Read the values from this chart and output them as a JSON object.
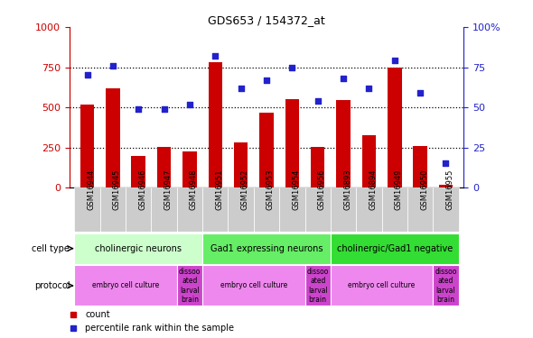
{
  "title": "GDS653 / 154372_at",
  "samples": [
    "GSM16944",
    "GSM16945",
    "GSM16946",
    "GSM16947",
    "GSM16948",
    "GSM16951",
    "GSM16952",
    "GSM16953",
    "GSM16954",
    "GSM16956",
    "GSM16893",
    "GSM16894",
    "GSM16949",
    "GSM16950",
    "GSM16955"
  ],
  "counts": [
    515,
    620,
    195,
    255,
    225,
    780,
    280,
    465,
    550,
    255,
    545,
    325,
    750,
    260,
    20
  ],
  "percentiles": [
    70,
    76,
    49,
    49,
    52,
    82,
    62,
    67,
    75,
    54,
    68,
    62,
    79,
    59,
    15
  ],
  "bar_color": "#cc0000",
  "dot_color": "#2222cc",
  "ylim_left": [
    0,
    1000
  ],
  "ylim_right": [
    0,
    100
  ],
  "yticks_left": [
    0,
    250,
    500,
    750,
    1000
  ],
  "yticks_right": [
    0,
    25,
    50,
    75,
    100
  ],
  "cell_type_groups": [
    {
      "label": "cholinergic neurons",
      "start": 0,
      "end": 5,
      "color": "#ccffcc"
    },
    {
      "label": "Gad1 expressing neurons",
      "start": 5,
      "end": 10,
      "color": "#66ee66"
    },
    {
      "label": "cholinergic/Gad1 negative",
      "start": 10,
      "end": 15,
      "color": "#33dd33"
    }
  ],
  "protocol_groups": [
    {
      "label": "embryo cell culture",
      "start": 0,
      "end": 4,
      "color": "#ee88ee"
    },
    {
      "label": "dissoo\nated\nlarval\nbrain",
      "start": 4,
      "end": 5,
      "color": "#cc44cc"
    },
    {
      "label": "embryo cell culture",
      "start": 5,
      "end": 9,
      "color": "#ee88ee"
    },
    {
      "label": "dissoo\nated\nlarval\nbrain",
      "start": 9,
      "end": 10,
      "color": "#cc44cc"
    },
    {
      "label": "embryo cell culture",
      "start": 10,
      "end": 14,
      "color": "#ee88ee"
    },
    {
      "label": "dissoo\nated\nlarval\nbrain",
      "start": 14,
      "end": 15,
      "color": "#cc44cc"
    }
  ],
  "grid_yticks": [
    250,
    500,
    750
  ],
  "background_color": "#ffffff",
  "xtick_bg": "#cccccc"
}
